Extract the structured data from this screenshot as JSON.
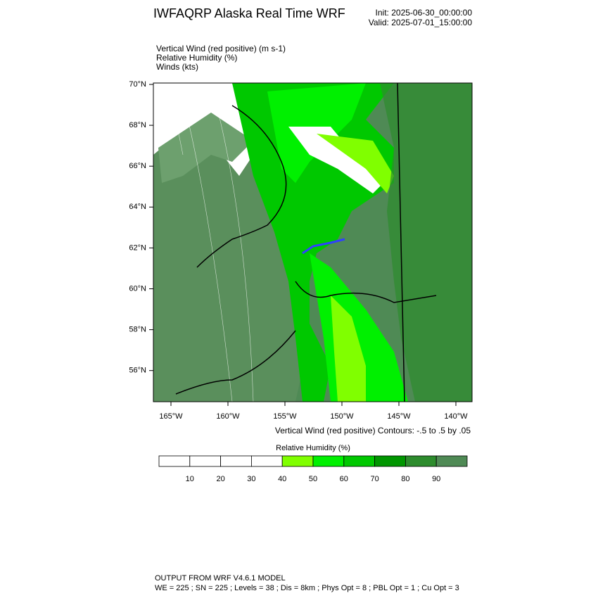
{
  "header": {
    "title": "IWFAQRP Alaska Real Time WRF",
    "init": "Init: 2025-06-30_00:00:00",
    "valid": "Valid: 2025-07-01_15:00:00"
  },
  "fields": [
    "Vertical Wind (red positive)   (m s-1)",
    "Relative Humidity   (%)",
    "Winds   (kts)"
  ],
  "map": {
    "lat_labels": [
      "70°N",
      "68°N",
      "66°N",
      "64°N",
      "62°N",
      "60°N",
      "58°N",
      "56°N"
    ],
    "lon_labels": [
      "165°W",
      "160°W",
      "155°W",
      "150°W",
      "145°W",
      "140°W"
    ],
    "contour_note": "Vertical Wind (red positive) Contours: -.5 to .5 by .05"
  },
  "colorbar": {
    "title": "Relative Humidity  (%)",
    "ticks": [
      10,
      20,
      30,
      40,
      50,
      60,
      70,
      80,
      90
    ],
    "colors": [
      "#ffffff",
      "#ffffff",
      "#ffffff",
      "#ffffff",
      "#80ff00",
      "#00f000",
      "#00c800",
      "#009600",
      "#2d8c2d",
      "#4f8a55"
    ]
  },
  "footer": {
    "line1": "OUTPUT FROM WRF V4.6.1 MODEL",
    "line2": "WE = 225 ; SN = 225 ; Levels = 38 ; Dis = 8km ; Phys Opt = 8 ; PBL Opt = 1 ; Cu Opt = 3"
  }
}
